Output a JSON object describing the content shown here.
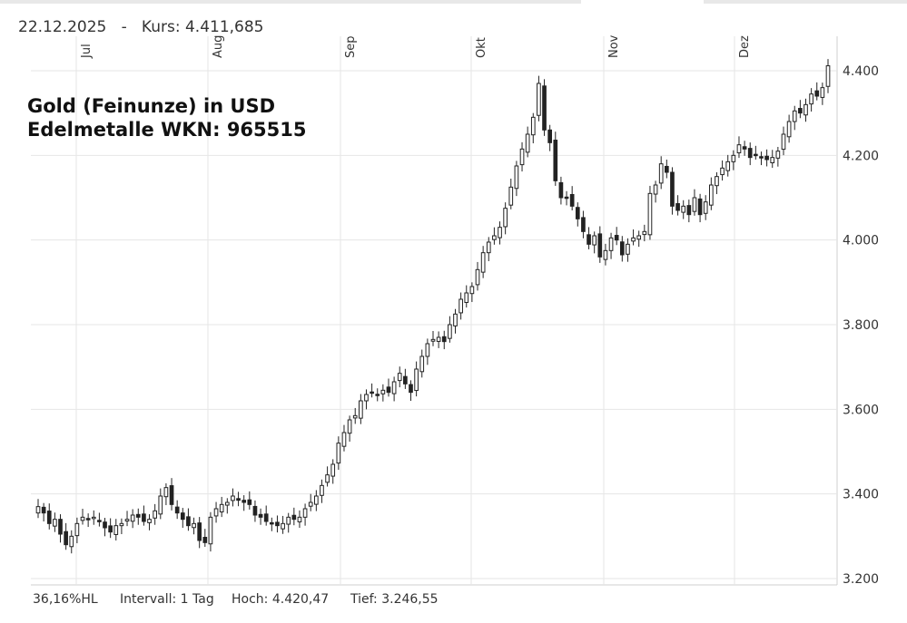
{
  "header": {
    "date": "22.12.2025",
    "separator": "-",
    "price": "Kurs: 4.411,685"
  },
  "title": {
    "line1": "Gold (Feinunze) in USD",
    "line2": "Edelmetalle WKN: 965515"
  },
  "footer": {
    "range": "36,16%HL",
    "interval": "Intervall: 1 Tag",
    "high": "Hoch:  4.420,47",
    "low": "Tief:  3.246,55"
  },
  "chart_data": {
    "type": "candlestick",
    "x_month_labels": [
      "Jul",
      "Aug",
      "Sep",
      "Okt",
      "Nov",
      "Dez"
    ],
    "y_tick_labels": [
      "4.400",
      "4.200",
      "4.000",
      "3.800",
      "3.600",
      "3.400",
      "3.200"
    ],
    "y_ticks": [
      4400,
      4200,
      4000,
      3800,
      3600,
      3400,
      3200
    ],
    "ylim": [
      3200,
      4440
    ],
    "grid": true,
    "colors": {
      "up": "#ffffff",
      "down": "#222222",
      "wick": "#222222",
      "grid": "#e6e6e6"
    },
    "close_series": [
      3370,
      3355,
      3330,
      3340,
      3305,
      3280,
      3300,
      3330,
      3345,
      3340,
      3345,
      3335,
      3320,
      3310,
      3325,
      3330,
      3340,
      3350,
      3345,
      3335,
      3340,
      3360,
      3395,
      3415,
      3375,
      3355,
      3340,
      3325,
      3330,
      3290,
      3285,
      3345,
      3365,
      3375,
      3380,
      3395,
      3385,
      3380,
      3375,
      3350,
      3345,
      3335,
      3330,
      3325,
      3330,
      3345,
      3340,
      3345,
      3365,
      3380,
      3395,
      3420,
      3445,
      3470,
      3520,
      3545,
      3575,
      3585,
      3620,
      3635,
      3640,
      3635,
      3645,
      3640,
      3665,
      3685,
      3660,
      3640,
      3695,
      3725,
      3755,
      3765,
      3770,
      3760,
      3800,
      3825,
      3860,
      3875,
      3890,
      3930,
      3970,
      3995,
      4010,
      4030,
      4075,
      4125,
      4175,
      4215,
      4250,
      4290,
      4370,
      4260,
      4230,
      4140,
      4100,
      4100,
      4080,
      4050,
      4020,
      3990,
      4010,
      3960,
      3975,
      4005,
      4000,
      3965,
      3990,
      4005,
      4010,
      4020,
      4110,
      4130,
      4180,
      4160,
      4080,
      4070,
      4080,
      4060,
      4100,
      4060,
      4090,
      4130,
      4150,
      4170,
      4185,
      4200,
      4225,
      4215,
      4195,
      4200,
      4195,
      4190,
      4195,
      4210,
      4250,
      4280,
      4305,
      4300,
      4320,
      4345,
      4340,
      4360,
      4411.685
    ]
  }
}
